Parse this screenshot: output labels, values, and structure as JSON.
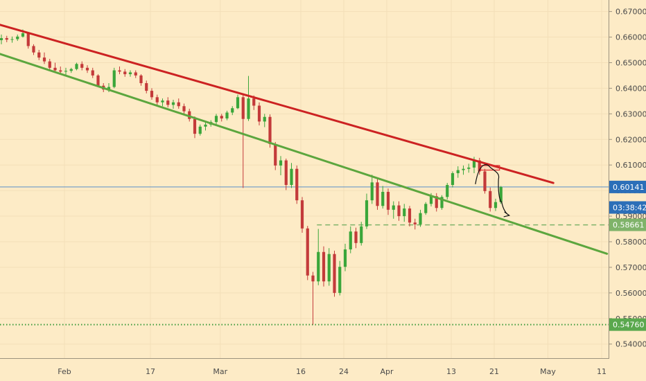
{
  "chart_data": {
    "type": "candlestick",
    "title": "",
    "ylim": [
      0.5345,
      0.6745
    ],
    "y_ticks": [
      "0.67000",
      "0.66000",
      "0.65000",
      "0.64000",
      "0.63000",
      "0.62000",
      "0.61000",
      "0.60000",
      "0.59000",
      "0.58000",
      "0.57000",
      "0.56000",
      "0.55000",
      "0.54000"
    ],
    "x_ticks": [
      {
        "label": "Feb",
        "day": 12
      },
      {
        "label": "17",
        "day": 28
      },
      {
        "label": "Mar",
        "day": 41
      },
      {
        "label": "16",
        "day": 56
      },
      {
        "label": "24",
        "day": 64
      },
      {
        "label": "Apr",
        "day": 72
      },
      {
        "label": "13",
        "day": 84
      },
      {
        "label": "21",
        "day": 92
      },
      {
        "label": "May",
        "day": 102
      },
      {
        "label": "11",
        "day": 112
      }
    ],
    "x_range": [
      0,
      121
    ],
    "price_labels": [
      {
        "name": "current-price",
        "value": 0.60141,
        "text": "0.60141",
        "color": "#2c6fb8"
      },
      {
        "name": "countdown",
        "value": 0.5934,
        "text": "03:38:42",
        "color": "#2c6fb8"
      },
      {
        "name": "support-level",
        "value": 0.58661,
        "text": "0.58661",
        "color": "#7fb36a"
      },
      {
        "name": "low-level",
        "value": 0.5476,
        "text": "0.54760",
        "color": "#5aa84e"
      }
    ],
    "horizontal_lines": [
      {
        "name": "current-price-line",
        "value": 0.60141,
        "style": "solid",
        "color": "#5a8fc8"
      },
      {
        "name": "support-line",
        "value": 0.58661,
        "style": "dashed",
        "color": "#7fb36a",
        "from_day": 59
      },
      {
        "name": "low-line",
        "value": 0.5476,
        "style": "dotted",
        "color": "#3a9a3a"
      }
    ],
    "trendlines": [
      {
        "name": "resistance-trendline",
        "color": "#cc2222",
        "points": [
          [
            0,
            0.6648
          ],
          [
            103,
            0.603
          ]
        ]
      },
      {
        "name": "support-trendline",
        "color": "#5ca63e",
        "points": [
          [
            0,
            0.6534
          ],
          [
            113,
            0.5753
          ]
        ]
      }
    ],
    "annotations": [
      {
        "name": "target-box",
        "type": "rect",
        "color": "#e03030",
        "day_range": [
          89.5,
          93
        ],
        "price_range": [
          0.608,
          0.6098
        ]
      },
      {
        "name": "projection-path",
        "type": "arrow-path",
        "color": "#111111",
        "points": [
          [
            88.5,
            0.6025
          ],
          [
            91.3,
            0.609
          ],
          [
            92.8,
            0.6045
          ],
          [
            93.4,
            0.5955
          ],
          [
            94.8,
            0.5903
          ]
        ]
      }
    ],
    "ohlc": [
      [
        0,
        0.6588,
        0.661,
        0.6572,
        0.6596
      ],
      [
        1,
        0.6596,
        0.6605,
        0.658,
        0.659
      ],
      [
        2,
        0.659,
        0.6602,
        0.6578,
        0.6592
      ],
      [
        3,
        0.6592,
        0.661,
        0.6585,
        0.6602
      ],
      [
        4,
        0.6602,
        0.663,
        0.6598,
        0.6615
      ],
      [
        5,
        0.6615,
        0.662,
        0.6555,
        0.6565
      ],
      [
        6,
        0.6565,
        0.6572,
        0.653,
        0.654
      ],
      [
        7,
        0.654,
        0.655,
        0.651,
        0.652
      ],
      [
        8,
        0.652,
        0.654,
        0.6495,
        0.6505
      ],
      [
        9,
        0.6505,
        0.6515,
        0.647,
        0.648
      ],
      [
        10,
        0.648,
        0.65,
        0.646,
        0.647
      ],
      [
        11,
        0.647,
        0.6485,
        0.6455,
        0.6465
      ],
      [
        12,
        0.6465,
        0.648,
        0.645,
        0.6468
      ],
      [
        13,
        0.6468,
        0.648,
        0.646,
        0.6475
      ],
      [
        14,
        0.6475,
        0.65,
        0.647,
        0.6495
      ],
      [
        15,
        0.6495,
        0.6505,
        0.647,
        0.648
      ],
      [
        16,
        0.648,
        0.649,
        0.646,
        0.647
      ],
      [
        17,
        0.647,
        0.648,
        0.644,
        0.645
      ],
      [
        18,
        0.645,
        0.6455,
        0.6405,
        0.641
      ],
      [
        19,
        0.641,
        0.642,
        0.6385,
        0.6395
      ],
      [
        20,
        0.6395,
        0.642,
        0.6385,
        0.6405
      ],
      [
        21,
        0.6405,
        0.648,
        0.64,
        0.647
      ],
      [
        22,
        0.647,
        0.6485,
        0.6455,
        0.6465
      ],
      [
        23,
        0.6465,
        0.6475,
        0.6445,
        0.6455
      ],
      [
        24,
        0.6455,
        0.647,
        0.6445,
        0.6462
      ],
      [
        25,
        0.6462,
        0.647,
        0.644,
        0.645
      ],
      [
        26,
        0.645,
        0.6455,
        0.641,
        0.642
      ],
      [
        27,
        0.642,
        0.643,
        0.638,
        0.639
      ],
      [
        28,
        0.639,
        0.64,
        0.6355,
        0.6365
      ],
      [
        29,
        0.6365,
        0.6375,
        0.6335,
        0.6345
      ],
      [
        30,
        0.6345,
        0.636,
        0.633,
        0.6352
      ],
      [
        31,
        0.6352,
        0.6365,
        0.6325,
        0.6335
      ],
      [
        32,
        0.6335,
        0.6355,
        0.632,
        0.6345
      ],
      [
        33,
        0.6345,
        0.636,
        0.632,
        0.633
      ],
      [
        34,
        0.633,
        0.634,
        0.63,
        0.631
      ],
      [
        35,
        0.631,
        0.632,
        0.627,
        0.628
      ],
      [
        36,
        0.628,
        0.629,
        0.6205,
        0.6222
      ],
      [
        37,
        0.6222,
        0.6258,
        0.6215,
        0.625
      ],
      [
        38,
        0.625,
        0.6268,
        0.6235,
        0.6258
      ],
      [
        39,
        0.6258,
        0.6275,
        0.625,
        0.6268
      ],
      [
        40,
        0.6268,
        0.63,
        0.6258,
        0.6292
      ],
      [
        41,
        0.6292,
        0.63,
        0.627,
        0.6282
      ],
      [
        42,
        0.6282,
        0.6312,
        0.6275,
        0.6305
      ],
      [
        43,
        0.6305,
        0.633,
        0.6295,
        0.6322
      ],
      [
        44,
        0.6322,
        0.6375,
        0.6318,
        0.6365
      ],
      [
        45,
        0.6365,
        0.638,
        0.601,
        0.628
      ],
      [
        46,
        0.628,
        0.6448,
        0.6272,
        0.636
      ],
      [
        47,
        0.636,
        0.6372,
        0.6315,
        0.6332
      ],
      [
        48,
        0.6332,
        0.6345,
        0.6255,
        0.627
      ],
      [
        49,
        0.627,
        0.63,
        0.6248,
        0.6288
      ],
      [
        50,
        0.6288,
        0.6298,
        0.6168,
        0.6182
      ],
      [
        51,
        0.6182,
        0.619,
        0.608,
        0.6098
      ],
      [
        52,
        0.6098,
        0.6135,
        0.606,
        0.6118
      ],
      [
        53,
        0.6118,
        0.6125,
        0.6002,
        0.6022
      ],
      [
        54,
        0.6022,
        0.6108,
        0.601,
        0.6085
      ],
      [
        55,
        0.6085,
        0.6098,
        0.5948,
        0.5962
      ],
      [
        56,
        0.5962,
        0.5975,
        0.5835,
        0.5852
      ],
      [
        57,
        0.5852,
        0.5862,
        0.565,
        0.5668
      ],
      [
        58,
        0.5668,
        0.5682,
        0.5476,
        0.5645
      ],
      [
        59,
        0.5645,
        0.585,
        0.563,
        0.576
      ],
      [
        60,
        0.576,
        0.5782,
        0.5625,
        0.5645
      ],
      [
        61,
        0.5645,
        0.5775,
        0.5628,
        0.5752
      ],
      [
        62,
        0.5752,
        0.5765,
        0.5585,
        0.56
      ],
      [
        63,
        0.56,
        0.5725,
        0.559,
        0.5702
      ],
      [
        64,
        0.5702,
        0.5792,
        0.5685,
        0.577
      ],
      [
        65,
        0.577,
        0.586,
        0.5755,
        0.584
      ],
      [
        66,
        0.584,
        0.5855,
        0.5775,
        0.5795
      ],
      [
        67,
        0.5795,
        0.5878,
        0.5785,
        0.586
      ],
      [
        68,
        0.586,
        0.5988,
        0.585,
        0.5962
      ],
      [
        69,
        0.5962,
        0.6062,
        0.5948,
        0.6032
      ],
      [
        70,
        0.6032,
        0.6045,
        0.5925,
        0.594
      ],
      [
        71,
        0.594,
        0.6018,
        0.593,
        0.5995
      ],
      [
        72,
        0.5995,
        0.6008,
        0.5905,
        0.5925
      ],
      [
        73,
        0.5925,
        0.5958,
        0.589,
        0.5942
      ],
      [
        74,
        0.5942,
        0.5958,
        0.5882,
        0.59
      ],
      [
        75,
        0.59,
        0.5948,
        0.5878,
        0.593
      ],
      [
        76,
        0.593,
        0.594,
        0.586,
        0.5875
      ],
      [
        77,
        0.5875,
        0.589,
        0.5848,
        0.5868
      ],
      [
        78,
        0.5868,
        0.5925,
        0.5858,
        0.5912
      ],
      [
        79,
        0.5912,
        0.5955,
        0.5905,
        0.5948
      ],
      [
        80,
        0.5948,
        0.599,
        0.5938,
        0.5978
      ],
      [
        81,
        0.5978,
        0.599,
        0.5918,
        0.5932
      ],
      [
        82,
        0.5932,
        0.5982,
        0.5925,
        0.5975
      ],
      [
        83,
        0.5975,
        0.603,
        0.5965,
        0.6022
      ],
      [
        84,
        0.6022,
        0.6075,
        0.6012,
        0.6068
      ],
      [
        85,
        0.6068,
        0.6095,
        0.605,
        0.608
      ],
      [
        86,
        0.608,
        0.6098,
        0.6062,
        0.6085
      ],
      [
        87,
        0.6085,
        0.6105,
        0.607,
        0.609
      ],
      [
        88,
        0.609,
        0.6132,
        0.6068,
        0.6118
      ],
      [
        89,
        0.6118,
        0.6128,
        0.6062,
        0.6075
      ],
      [
        90,
        0.6075,
        0.6085,
        0.5988,
        0.5998
      ],
      [
        91,
        0.5998,
        0.6012,
        0.5918,
        0.5932
      ],
      [
        92,
        0.5932,
        0.5968,
        0.592,
        0.5955
      ],
      [
        93,
        0.5955,
        0.6018,
        0.5948,
        0.6014
      ]
    ]
  }
}
